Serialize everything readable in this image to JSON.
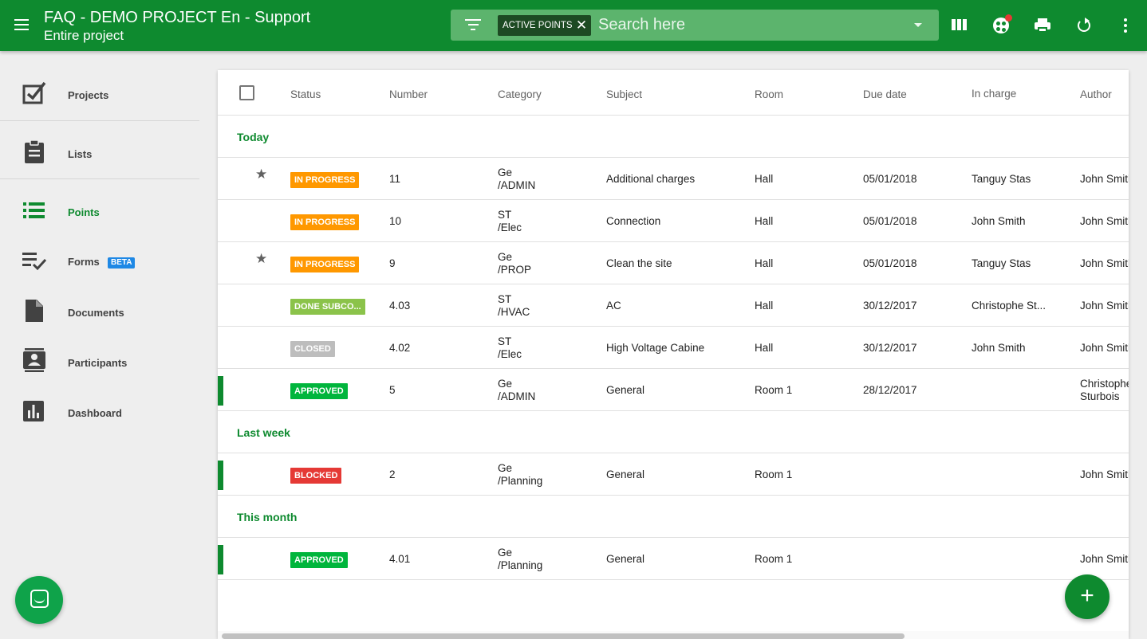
{
  "header": {
    "title": "FAQ - DEMO PROJECT En - Support",
    "subtitle": "Entire project",
    "filter_chip": "ACTIVE POINTS",
    "search_placeholder": "Search here",
    "icons": [
      "menu-icon",
      "filter-icon",
      "columns-icon",
      "palette-icon",
      "print-icon",
      "refresh-icon",
      "more-vert-icon"
    ]
  },
  "sidebar": {
    "items": [
      {
        "label": "Projects",
        "icon": "checkbox-icon"
      },
      {
        "label": "Lists",
        "icon": "clipboard-icon"
      },
      {
        "label": "Points",
        "icon": "list-icon",
        "active": true
      },
      {
        "label": "Forms",
        "icon": "checklist-icon",
        "badge": "BETA"
      },
      {
        "label": "Documents",
        "icon": "document-icon"
      },
      {
        "label": "Participants",
        "icon": "contacts-icon"
      },
      {
        "label": "Dashboard",
        "icon": "chart-icon"
      }
    ]
  },
  "table": {
    "columns": [
      "Status",
      "Number",
      "Category",
      "Subject",
      "Room",
      "Due date",
      "In charge",
      "Author"
    ],
    "groups": [
      {
        "label": "Today",
        "rows": [
          {
            "starred": true,
            "status": "IN PROGRESS",
            "number": "11",
            "category": [
              "Ge",
              "/ADMIN"
            ],
            "subject": "Additional charges",
            "room": "Hall",
            "due": "05/01/2018",
            "in_charge": "Tanguy Stas",
            "author": "John Smith"
          },
          {
            "starred": false,
            "status": "IN PROGRESS",
            "number": "10",
            "category": [
              "ST",
              "/Elec"
            ],
            "subject": "Connection",
            "room": "Hall",
            "due": "05/01/2018",
            "in_charge": "John Smith",
            "author": "John Smith"
          },
          {
            "starred": true,
            "status": "IN PROGRESS",
            "number": "9",
            "category": [
              "Ge",
              "/PROP"
            ],
            "subject": "Clean the site",
            "room": "Hall",
            "due": "05/01/2018",
            "in_charge": "Tanguy Stas",
            "author": "John Smith"
          },
          {
            "starred": false,
            "status": "DONE SUBCO...",
            "number": "4.03",
            "category": [
              "ST",
              "/HVAC"
            ],
            "subject": "AC",
            "room": "Hall",
            "due": "30/12/2017",
            "in_charge": "Christophe St...",
            "author": "John Smith"
          },
          {
            "starred": false,
            "status": "CLOSED",
            "number": "4.02",
            "category": [
              "ST",
              "/Elec"
            ],
            "subject": "High Voltage Cabine",
            "room": "Hall",
            "due": "30/12/2017",
            "in_charge": "John Smith",
            "author": "John Smith"
          },
          {
            "starred": false,
            "marked": true,
            "status": "APPROVED",
            "number": "5",
            "category": [
              "Ge",
              "/ADMIN"
            ],
            "subject": "General",
            "room": "Room 1",
            "due": "28/12/2017",
            "in_charge": "",
            "author": [
              "Christophe",
              "Sturbois"
            ]
          }
        ]
      },
      {
        "label": "Last week",
        "rows": [
          {
            "starred": false,
            "marked": true,
            "status": "BLOCKED",
            "number": "2",
            "category": [
              "Ge",
              "/Planning"
            ],
            "subject": "General",
            "room": "Room 1",
            "due": "",
            "in_charge": "",
            "author": "John Smith"
          }
        ]
      },
      {
        "label": "This month",
        "rows": [
          {
            "starred": false,
            "marked": true,
            "status": "APPROVED",
            "number": "4.01",
            "category": [
              "Ge",
              "/Planning"
            ],
            "subject": "General",
            "room": "Room 1",
            "due": "",
            "in_charge": "",
            "author": "John Smith"
          }
        ]
      }
    ]
  },
  "status_colors": {
    "IN PROGRESS": "#ff9800",
    "DONE SUBCO...": "#8bc34a",
    "CLOSED": "#bdbdbd",
    "APPROVED": "#00b53c",
    "BLOCKED": "#e53935"
  },
  "fab_label": "+",
  "colors": {
    "brand": "#0e8a2f",
    "search_bg": "#5cb46d",
    "chip_bg": "#1d4a23"
  }
}
